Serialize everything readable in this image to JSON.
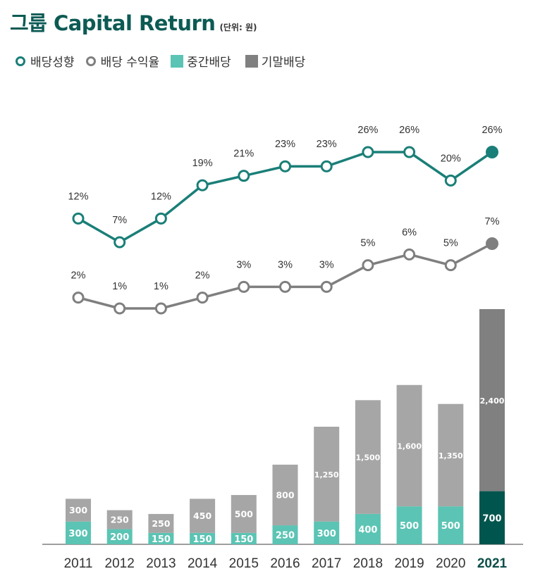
{
  "header": {
    "title": "그룹 Capital Return",
    "unit": "(단위: 원)"
  },
  "legend": [
    {
      "label": "배당성향",
      "marker": "circle",
      "color": "#1a7f78"
    },
    {
      "label": "배당 수익율",
      "marker": "circle",
      "color": "#7f7f7f"
    },
    {
      "label": "중간배당",
      "marker": "square",
      "color": "#5bc4b4"
    },
    {
      "label": "기말배당",
      "marker": "square",
      "color": "#808080"
    }
  ],
  "colors": {
    "payout": "#1a7f78",
    "yield": "#7f7f7f",
    "interim": "#5bc4b4",
    "final": "#a6a6a6",
    "final_latest": "#808080",
    "interim_latest": "#00554e"
  },
  "chart_data": {
    "type": "bar",
    "stacked": true,
    "categories": [
      "2011",
      "2012",
      "2013",
      "2014",
      "2015",
      "2016",
      "2017",
      "2018",
      "2019",
      "2020",
      "2021"
    ],
    "series": [
      {
        "name": "중간배당",
        "values": [
          300,
          200,
          150,
          150,
          150,
          250,
          300,
          400,
          500,
          500,
          700
        ],
        "labels": [
          "300",
          "200",
          "150",
          "150",
          "150",
          "250",
          "300",
          "400",
          "500",
          "500",
          "700"
        ]
      },
      {
        "name": "기말배당",
        "values": [
          300,
          250,
          250,
          450,
          500,
          800,
          1250,
          1500,
          1600,
          1350,
          2400
        ],
        "labels": [
          "300",
          "250",
          "250",
          "450",
          "500",
          "800",
          "1,250",
          "1,500",
          "1,600",
          "1,350",
          "2,400"
        ]
      }
    ],
    "lines": [
      {
        "name": "배당성향",
        "values": [
          12,
          7,
          12,
          19,
          21,
          23,
          23,
          26,
          26,
          20,
          26
        ],
        "labels": [
          "12%",
          "7%",
          "12%",
          "19%",
          "21%",
          "23%",
          "23%",
          "26%",
          "26%",
          "20%",
          "26%"
        ]
      },
      {
        "name": "배당 수익율",
        "values": [
          2,
          1,
          1,
          2,
          3,
          3,
          3,
          5,
          6,
          5,
          7
        ],
        "labels": [
          "2%",
          "1%",
          "1%",
          "2%",
          "3%",
          "3%",
          "3%",
          "5%",
          "6%",
          "5%",
          "7%"
        ]
      }
    ],
    "title": "그룹 Capital Return",
    "unit": "(단위: 원)",
    "highlight_category": "2021",
    "bar_ylim": [
      0,
      3100
    ]
  }
}
